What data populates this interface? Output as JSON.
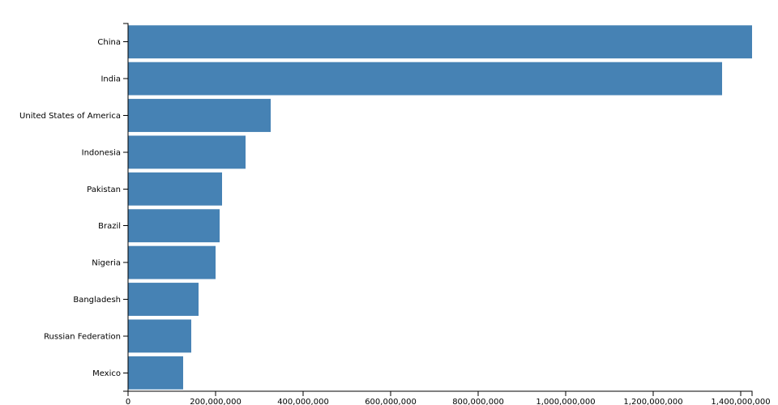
{
  "chart_data": {
    "type": "bar",
    "orientation": "horizontal",
    "categories": [
      "China",
      "India",
      "United States of America",
      "Indonesia",
      "Pakistan",
      "Brazil",
      "Nigeria",
      "Bangladesh",
      "Russian Federation",
      "Mexico"
    ],
    "values": [
      1425900000,
      1357400000,
      326000000,
      268500000,
      214800000,
      209300000,
      200000000,
      161100000,
      144400000,
      125900000
    ],
    "color": "#4682b4",
    "xlim": [
      0,
      1425900000
    ],
    "xticks": [
      0,
      {
        "value": 200000000,
        "label": "200,000,000"
      },
      {
        "value": 400000000,
        "label": "400,000,000"
      },
      {
        "value": 600000000,
        "label": "600,000,000"
      },
      {
        "value": 800000000,
        "label": "800,000,000"
      },
      {
        "value": 1000000000,
        "label": "1,000,000,000"
      },
      {
        "value": 1200000000,
        "label": "1,200,000,000"
      },
      {
        "value": 1400000000,
        "label": "1,400,000,000"
      }
    ],
    "grid": false
  }
}
